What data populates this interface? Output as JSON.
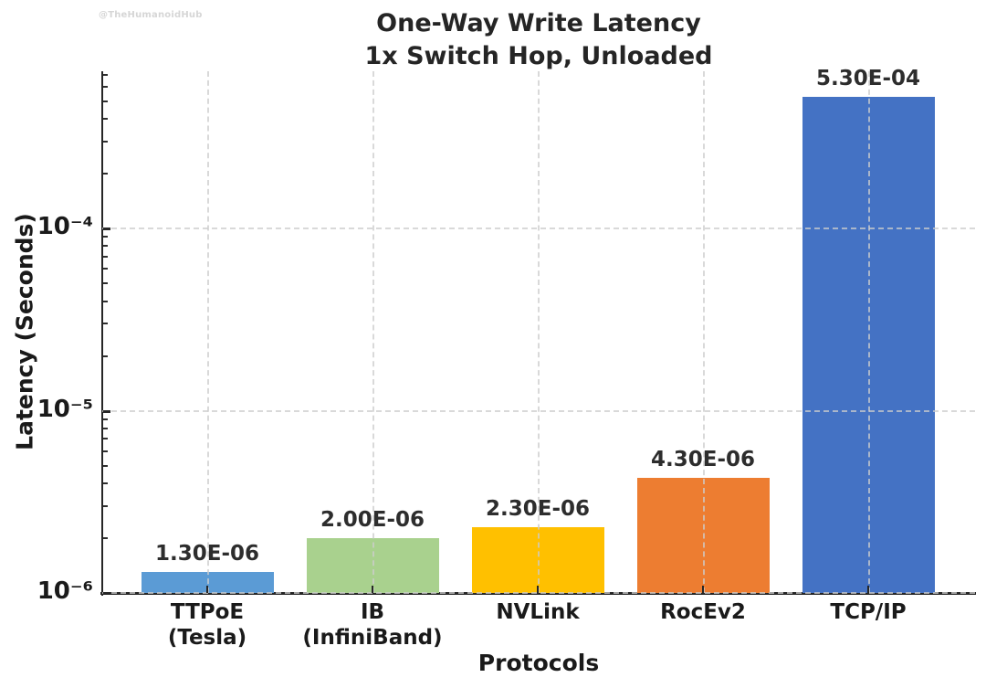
{
  "watermark": "@TheHumanoidHub",
  "chart": {
    "title_line1": "One-Way Write Latency",
    "title_line2": "1x Switch Hop, Unloaded",
    "ylabel": "Latency (Seconds)",
    "xlabel": "Protocols"
  },
  "chart_data": {
    "type": "bar",
    "title": "One-Way Write Latency",
    "subtitle": "1x Switch Hop, Unloaded",
    "xlabel": "Protocols",
    "ylabel": "Latency (Seconds)",
    "yscale": "log",
    "ylim": [
      1e-06,
      0.00073
    ],
    "grid": true,
    "legend": "none",
    "categories": [
      "TTPoE\n(Tesla)",
      "IB\n(InfiniBand)",
      "NVLink",
      "RocEv2",
      "TCP/IP"
    ],
    "values": [
      1.3e-06,
      2e-06,
      2.3e-06,
      4.3e-06,
      0.00053
    ],
    "value_labels": [
      "1.30E-06",
      "2.00E-06",
      "2.30E-06",
      "4.30E-06",
      "5.30E-04"
    ],
    "bar_colors": [
      "#5B9BD5",
      "#A9D18E",
      "#FFC000",
      "#ED7D31",
      "#4472C4"
    ],
    "yticks": [
      {
        "value": 1e-06,
        "label": "10⁻⁶"
      },
      {
        "value": 1e-05,
        "label": "10⁻⁵"
      },
      {
        "value": 0.0001,
        "label": "10⁻⁴"
      }
    ],
    "text_color": "#1a1a1a",
    "grid_color": "#cdcdcd",
    "axis_color": "#262626"
  }
}
